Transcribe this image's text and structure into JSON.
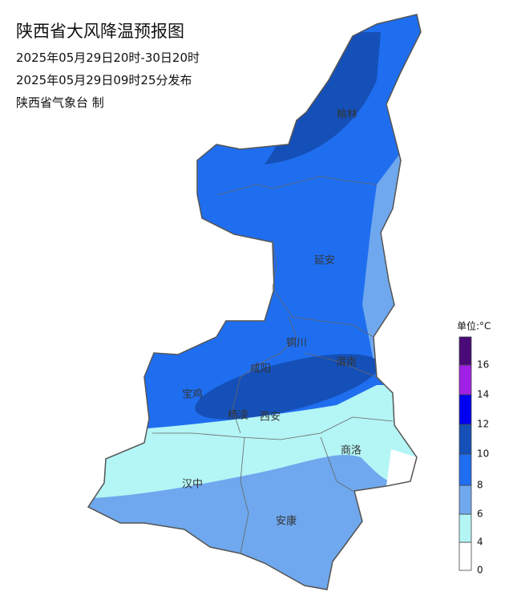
{
  "header": {
    "title": "陕西省大风降温预报图",
    "period": "2025年05月29日20时-30日20时",
    "issued": "2025年05月29日09时25分发布",
    "issuer": "陕西省气象台 制"
  },
  "cities": [
    "榆林",
    "延安",
    "铜川",
    "咸阳",
    "渭南",
    "宝鸡",
    "杨凌",
    "西安",
    "商洛",
    "汉中",
    "安康"
  ],
  "legend": {
    "unit": "单位:°C",
    "labels": [
      0,
      4,
      6,
      8,
      10,
      12,
      14,
      16
    ],
    "colors": [
      "#ffffff",
      "#b4f5f5",
      "#6fa8ee",
      "#1f6ef0",
      "#1550b8",
      "#0000f0",
      "#a020e6",
      "#4a0a78"
    ]
  }
}
